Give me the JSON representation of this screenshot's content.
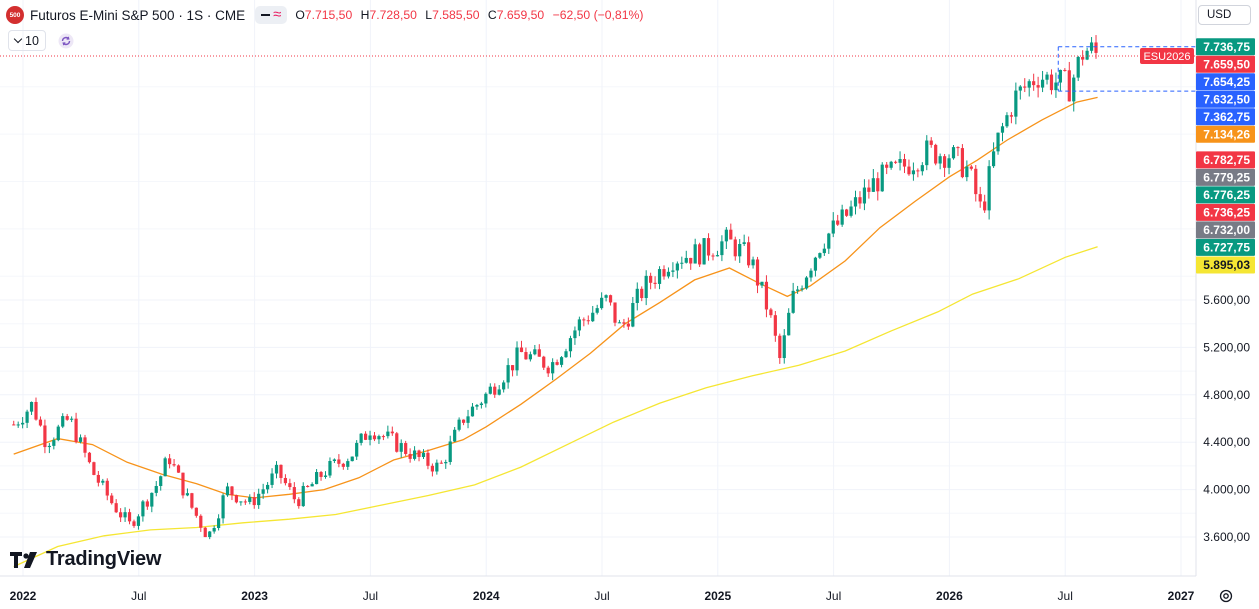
{
  "header": {
    "logo_text": "500",
    "symbol": "Futuros E-Mini S&P 500 · 1S · CME",
    "ohlc": {
      "o_label": "O",
      "o": "7.715,50",
      "h_label": "H",
      "h": "7.728,50",
      "l_label": "L",
      "l": "7.585,50",
      "c_label": "C",
      "c": "7.659,50",
      "change": "−62,50 (−0,81%)"
    }
  },
  "toolbar": {
    "indicator_length": "10"
  },
  "currency": "USD",
  "branding": "TradingView",
  "colors": {
    "up": "#089981",
    "down": "#f23645",
    "ma_orange": "#f7931a",
    "ma_yellow": "#f5e633",
    "price_line": "#f23645",
    "range_blue": "#2962ff"
  },
  "icons": [
    "sync-icon",
    "chevron-down-icon",
    "settings-icon",
    "tradingview-logo-icon"
  ],
  "chart_data": {
    "type": "candlestick",
    "title": "Futuros E-Mini S&P 500 · 1S · CME",
    "ylim": [
      3400,
      7850
    ],
    "y_ticks": [
      3600,
      4000,
      4400,
      4800,
      5200,
      5600
    ],
    "y_tick_labels": [
      "3.600,00",
      "4.000,00",
      "4.400,00",
      "4.800,00",
      "5.200,00",
      "5.600,00"
    ],
    "x_ticks": [
      {
        "label": "2022",
        "t": 2022.0
      },
      {
        "label": "Jul",
        "t": 2022.5
      },
      {
        "label": "2023",
        "t": 2023.0
      },
      {
        "label": "Jul",
        "t": 2023.5
      },
      {
        "label": "2024",
        "t": 2024.0
      },
      {
        "label": "Jul",
        "t": 2024.5
      },
      {
        "label": "2025",
        "t": 2025.0
      },
      {
        "label": "Jul",
        "t": 2025.5
      },
      {
        "label": "2026",
        "t": 2026.0
      },
      {
        "label": "Jul",
        "t": 2026.5
      },
      {
        "label": "2027",
        "t": 2027.0
      }
    ],
    "x_range": [
      2022.0,
      2027.0
    ],
    "price_path": [
      [
        2021.96,
        4550
      ],
      [
        2022.04,
        4720
      ],
      [
        2022.1,
        4400
      ],
      [
        2022.2,
        4600
      ],
      [
        2022.3,
        4150
      ],
      [
        2022.38,
        3900
      ],
      [
        2022.46,
        3700
      ],
      [
        2022.58,
        4050
      ],
      [
        2022.63,
        4280
      ],
      [
        2022.72,
        3880
      ],
      [
        2022.8,
        3600
      ],
      [
        2022.88,
        4000
      ],
      [
        2022.98,
        3880
      ],
      [
        2023.1,
        4150
      ],
      [
        2023.18,
        3900
      ],
      [
        2023.3,
        4150
      ],
      [
        2023.42,
        4300
      ],
      [
        2023.5,
        4520
      ],
      [
        2023.6,
        4400
      ],
      [
        2023.72,
        4250
      ],
      [
        2023.8,
        4180
      ],
      [
        2023.9,
        4600
      ],
      [
        2024.0,
        4800
      ],
      [
        2024.15,
        5150
      ],
      [
        2024.28,
        5050
      ],
      [
        2024.4,
        5400
      ],
      [
        2024.52,
        5600
      ],
      [
        2024.58,
        5350
      ],
      [
        2024.68,
        5700
      ],
      [
        2024.8,
        5950
      ],
      [
        2024.92,
        6000
      ],
      [
        2025.04,
        6100
      ],
      [
        2025.14,
        5950
      ],
      [
        2025.22,
        5500
      ],
      [
        2025.27,
        5080
      ],
      [
        2025.32,
        5600
      ],
      [
        2025.45,
        6100
      ],
      [
        2025.55,
        6300
      ],
      [
        2025.68,
        6600
      ],
      [
        2025.78,
        6700
      ],
      [
        2025.9,
        6850
      ],
      [
        2026.0,
        6830
      ],
      [
        2026.08,
        6700
      ],
      [
        2026.14,
        6330
      ],
      [
        2026.2,
        6900
      ],
      [
        2026.28,
        7300
      ],
      [
        2026.38,
        7500
      ],
      [
        2026.45,
        7450
      ],
      [
        2026.52,
        7400
      ],
      [
        2026.55,
        7550
      ],
      [
        2026.58,
        7710
      ],
      [
        2026.62,
        7700
      ],
      [
        2026.64,
        7659.5
      ]
    ],
    "series": [
      {
        "name": "",
        "color": "#f7931a",
        "points": [
          [
            2021.96,
            4300
          ],
          [
            2022.15,
            4430
          ],
          [
            2022.3,
            4380
          ],
          [
            2022.45,
            4230
          ],
          [
            2022.6,
            4130
          ],
          [
            2022.75,
            4050
          ],
          [
            2022.88,
            3960
          ],
          [
            2023.0,
            3930
          ],
          [
            2023.15,
            3960
          ],
          [
            2023.3,
            4000
          ],
          [
            2023.45,
            4100
          ],
          [
            2023.6,
            4250
          ],
          [
            2023.75,
            4330
          ],
          [
            2023.9,
            4420
          ],
          [
            2024.0,
            4530
          ],
          [
            2024.15,
            4720
          ],
          [
            2024.3,
            4930
          ],
          [
            2024.45,
            5150
          ],
          [
            2024.6,
            5400
          ],
          [
            2024.75,
            5580
          ],
          [
            2024.9,
            5770
          ],
          [
            2025.05,
            5870
          ],
          [
            2025.18,
            5740
          ],
          [
            2025.3,
            5630
          ],
          [
            2025.4,
            5720
          ],
          [
            2025.55,
            5930
          ],
          [
            2025.7,
            6210
          ],
          [
            2025.85,
            6430
          ],
          [
            2026.0,
            6640
          ],
          [
            2026.12,
            6780
          ],
          [
            2026.25,
            6950
          ],
          [
            2026.4,
            7120
          ],
          [
            2026.55,
            7270
          ],
          [
            2026.64,
            7310
          ]
        ]
      },
      {
        "name": "",
        "color": "#f5e633",
        "points": [
          [
            2021.96,
            3350
          ],
          [
            2022.15,
            3520
          ],
          [
            2022.35,
            3610
          ],
          [
            2022.55,
            3660
          ],
          [
            2022.75,
            3680
          ],
          [
            2022.95,
            3720
          ],
          [
            2023.15,
            3750
          ],
          [
            2023.35,
            3790
          ],
          [
            2023.55,
            3870
          ],
          [
            2023.75,
            3950
          ],
          [
            2023.95,
            4040
          ],
          [
            2024.15,
            4190
          ],
          [
            2024.35,
            4380
          ],
          [
            2024.55,
            4570
          ],
          [
            2024.75,
            4730
          ],
          [
            2024.95,
            4860
          ],
          [
            2025.15,
            4960
          ],
          [
            2025.35,
            5050
          ],
          [
            2025.55,
            5170
          ],
          [
            2025.75,
            5340
          ],
          [
            2025.95,
            5500
          ],
          [
            2026.1,
            5650
          ],
          [
            2026.3,
            5780
          ],
          [
            2026.5,
            5960
          ],
          [
            2026.64,
            6050
          ]
        ]
      }
    ],
    "overlay": {
      "range_top": 7736.75,
      "range_bottom": 7362.75
    },
    "price_labels": [
      {
        "text": "7.736,75",
        "bg": "#089981",
        "y": 7736.75
      },
      {
        "text": "7.659,50",
        "bg": "#f23645",
        "y": 7659.5
      },
      {
        "text": "7.654,25",
        "bg": "#2962ff",
        "y": 7654.25
      },
      {
        "text": "7.632,50",
        "bg": "#2962ff",
        "y": 7632.5
      },
      {
        "text": "7.362,75",
        "bg": "#2962ff",
        "y": 7362.75
      },
      {
        "text": "7.134,26",
        "bg": "#f7931a",
        "y": 7134.26
      },
      {
        "text": "6.782,75",
        "bg": "#f23645",
        "y": 6782.75
      },
      {
        "text": "6.779,25",
        "bg": "#787b86",
        "y": 6779.25
      },
      {
        "text": "6.776,25",
        "bg": "#089981",
        "y": 6776.25
      },
      {
        "text": "6.736,25",
        "bg": "#f23645",
        "y": 6736.25
      },
      {
        "text": "6.732,00",
        "bg": "#787b86",
        "y": 6732.0
      },
      {
        "text": "6.727,75",
        "bg": "#089981",
        "y": 6727.75
      },
      {
        "text": "5.895,03",
        "bg": "#f5e633",
        "y": 5895.03,
        "dark": true
      }
    ],
    "symbol_label": "ESU2026"
  }
}
